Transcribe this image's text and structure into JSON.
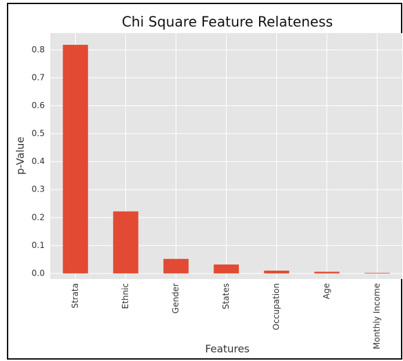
{
  "chart_data": {
    "type": "bar",
    "title": "Chi Square Feature Relateness",
    "x_label": "Features",
    "y_label": "p-Value",
    "categories": [
      "Strata",
      "Ethnic",
      "Gender",
      "States",
      "Occupation",
      "Age",
      "Monthly Income"
    ],
    "values": [
      0.818,
      0.222,
      0.052,
      0.032,
      0.01,
      0.006,
      0.002
    ],
    "color": "#e24a33",
    "ylim": [
      -0.02,
      0.86
    ],
    "yticks": [
      {
        "value": 0,
        "label": "0.0"
      },
      0.1,
      0.2,
      0.3,
      0.4,
      0.5,
      0.6,
      0.7,
      0.8
    ],
    "grid": true
  }
}
